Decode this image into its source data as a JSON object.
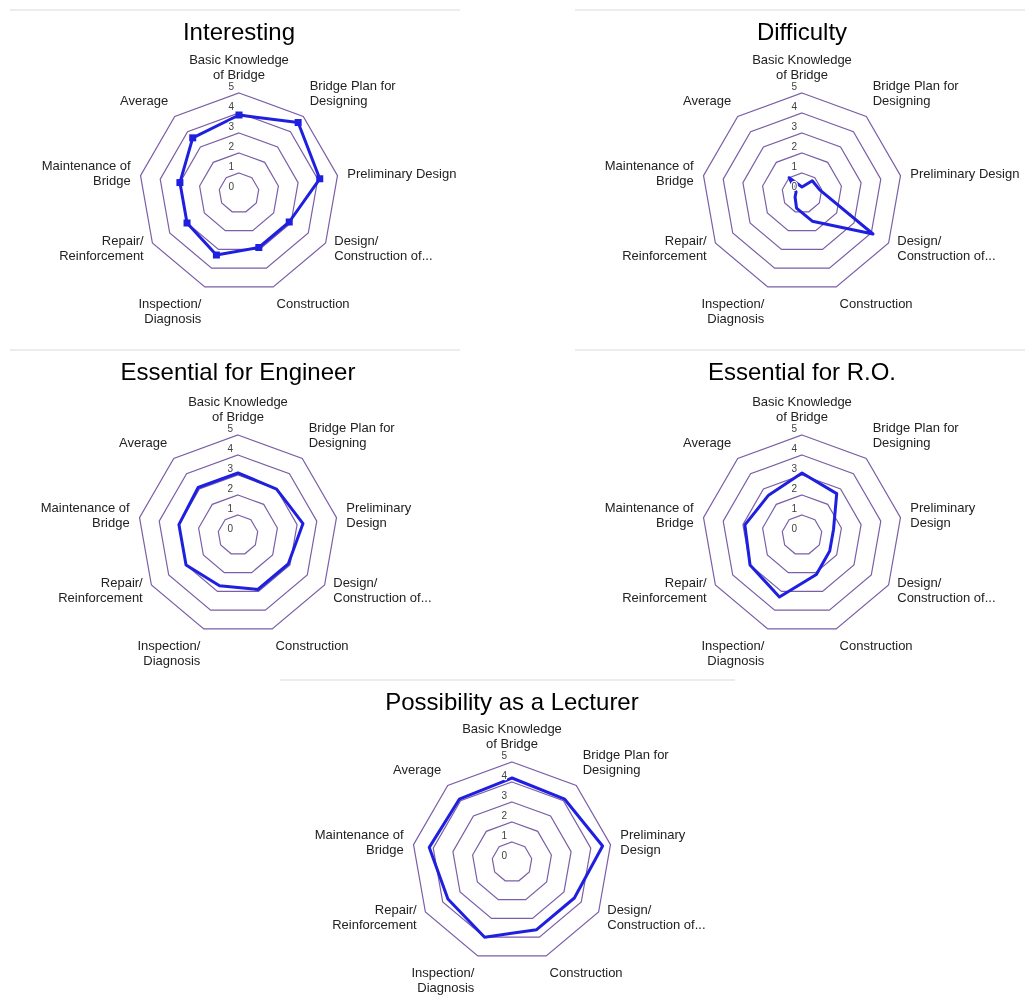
{
  "chart_data": [
    {
      "type": "radar",
      "title": "Interesting",
      "categories": [
        "Basic Knowledge\nof Bridge",
        "Bridge Plan for\nDesigning",
        "Preliminary Design",
        "Design/\nConstruction of...",
        "Construction",
        "Inspection/\nDiagnosis",
        "Repair/\nReinforcement",
        "Maintenance of\nBridge",
        "Average"
      ],
      "series": [
        {
          "color": "#1f1fe0",
          "values": [
            3.9,
            4.6,
            4.1,
            2.9,
            2.9,
            3.3,
            3.0,
            3.0,
            3.6
          ]
        }
      ],
      "ylim": [
        0,
        5
      ],
      "yticks": [
        0,
        1,
        2,
        3,
        4,
        5
      ],
      "grid": true,
      "marker": "square"
    },
    {
      "type": "radar",
      "title": "Difficulty",
      "categories": [
        "Basic Knowledge\nof Bridge",
        "Bridge Plan for\nDesigning",
        "Preliminary Design",
        "Design/\nConstruction of...",
        "Construction",
        "Inspection/\nDiagnosis",
        "Repair/\nReinforcement",
        "Maintenance of\nBridge",
        "Average"
      ],
      "series": [
        {
          "color": "#1f1fe0",
          "values": [
            0.3,
            0.8,
            0.9,
            4.1,
            1.5,
            0.8,
            0.4,
            0.3,
            1.0
          ]
        }
      ],
      "ylim": [
        0,
        5
      ],
      "yticks": [
        0,
        1,
        2,
        3,
        4,
        5
      ],
      "grid": true,
      "marker": "none"
    },
    {
      "type": "radar",
      "title": "Essential for Engineer",
      "categories": [
        "Basic Knowledge\nof Bridge",
        "Bridge Plan for\nDesigning",
        "Preliminary\nDesign",
        "Design/\nConstruction of...",
        "Construction",
        "Inspection/\nDiagnosis",
        "Repair/\nReinforcement",
        "Maintenance of\nBridge",
        "Average"
      ],
      "series": [
        {
          "color": "#1f1fe0",
          "values": [
            3.1,
            3.0,
            3.3,
            2.9,
            2.9,
            2.7,
            3.0,
            3.0,
            3.1
          ]
        }
      ],
      "ylim": [
        0,
        5
      ],
      "yticks": [
        0,
        1,
        2,
        3,
        4,
        5
      ],
      "grid": true,
      "marker": "none"
    },
    {
      "type": "radar",
      "title": "Essential for R.O.",
      "categories": [
        "Basic Knowledge\nof Bridge",
        "Bridge Plan for\nDesigning",
        "Preliminary\nDesign",
        "Design/\nConstruction of...",
        "Construction",
        "Inspection/\nDiagnosis",
        "Repair/\nReinforcement",
        "Maintenance of\nBridge",
        "Average"
      ],
      "series": [
        {
          "color": "#1f1fe0",
          "values": [
            3.1,
            2.7,
            1.6,
            1.6,
            2.1,
            3.3,
            3.0,
            2.9,
            2.6
          ]
        }
      ],
      "ylim": [
        0,
        5
      ],
      "yticks": [
        0,
        1,
        2,
        3,
        4,
        5
      ],
      "grid": true,
      "marker": "none"
    },
    {
      "type": "radar",
      "title": "Possibility as a Lecturer",
      "categories": [
        "Basic Knowledge\nof Bridge",
        "Bridge Plan for\nDesigning",
        "Preliminary\nDesign",
        "Design/\nConstruction of...",
        "Construction",
        "Inspection/\nDiagnosis",
        "Repair/\nReinforcement",
        "Maintenance of\nBridge",
        "Average"
      ],
      "series": [
        {
          "color": "#1f1fe0",
          "values": [
            4.2,
            4.1,
            4.6,
            3.6,
            3.6,
            4.0,
            3.7,
            4.2,
            4.1
          ]
        }
      ],
      "ylim": [
        0,
        5
      ],
      "yticks": [
        0,
        1,
        2,
        3,
        4,
        5
      ],
      "grid": true,
      "marker": "none"
    }
  ]
}
